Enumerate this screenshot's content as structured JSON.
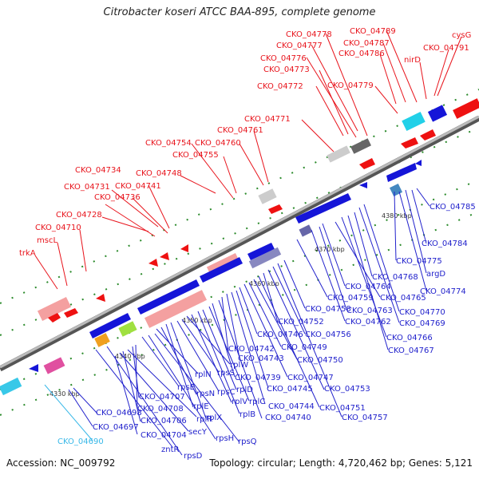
{
  "title": "Citrobacter koseri ATCC BAA-895, complete genome",
  "accession_text": "Accession: NC_009792",
  "summary_text": "Topology: circular; Length: 4,720,462 bp; Genes: 5,121",
  "colors": {
    "backbone": "#888888",
    "top_label": "#e8141c",
    "bottom_label": "#2222cc",
    "highlight_label": "#38b8e8",
    "tick": "#2a8a2a",
    "forward_gene": "#ee1111",
    "reverse_gene": "#1515d8",
    "rrna": "#f08080",
    "ribosomal": "#f4a0a0"
  },
  "scale_labels": [
    "4330 kbp",
    "4340 kbp",
    "4350 kbp",
    "4360 kbp",
    "4370 kbp",
    "4380 kbp"
  ],
  "top_labels": [
    "trkA",
    "mscL",
    "CKO_04710",
    "CKO_04728",
    "CKO_04731",
    "CKO_04734",
    "CKO_04736",
    "CKO_04741",
    "CKO_04748",
    "CKO_04754",
    "CKO_04755",
    "CKO_04760",
    "CKO_04761",
    "CKO_04771",
    "CKO_04772",
    "CKO_04773",
    "CKO_04776",
    "CKO_04777",
    "CKO_04778",
    "CKO_04779",
    "CKO_04786",
    "CKO_04787",
    "CKO_04789",
    "nirD",
    "CKO_04791",
    "cysG"
  ],
  "bottom_labels": [
    "CKO_04690",
    "CKO_04697",
    "CKO_04698",
    "zntR",
    "rpsD",
    "CKO_04704",
    "secY",
    "CKO_04706",
    "rplR",
    "CKO_04707",
    "CKO_04708",
    "rpsE",
    "rpsH",
    "rpsQ",
    "rplN",
    "rpsN",
    "rplE",
    "rplX",
    "rpsC",
    "rpsS",
    "rplW",
    "rplV",
    "rplB",
    "rplD",
    "rplC",
    "CKO_04739",
    "CKO_04740",
    "CKO_04742",
    "CKO_04743",
    "CKO_04744",
    "CKO_04745",
    "CKO_04746",
    "CKO_04747",
    "CKO_04749",
    "CKO_04750",
    "CKO_04751",
    "CKO_04752",
    "CKO_04753",
    "CKO_04756",
    "CKO_04757",
    "CKO_04758",
    "CKO_04759",
    "CKO_04762",
    "CKO_04763",
    "CKO_04764",
    "CKO_04765",
    "CKO_04766",
    "CKO_04767",
    "CKO_04768",
    "CKO_04769",
    "CKO_04770",
    "CKO_04774",
    "argD",
    "CKO_04775",
    "CKO_04784",
    "CKO_04785"
  ]
}
